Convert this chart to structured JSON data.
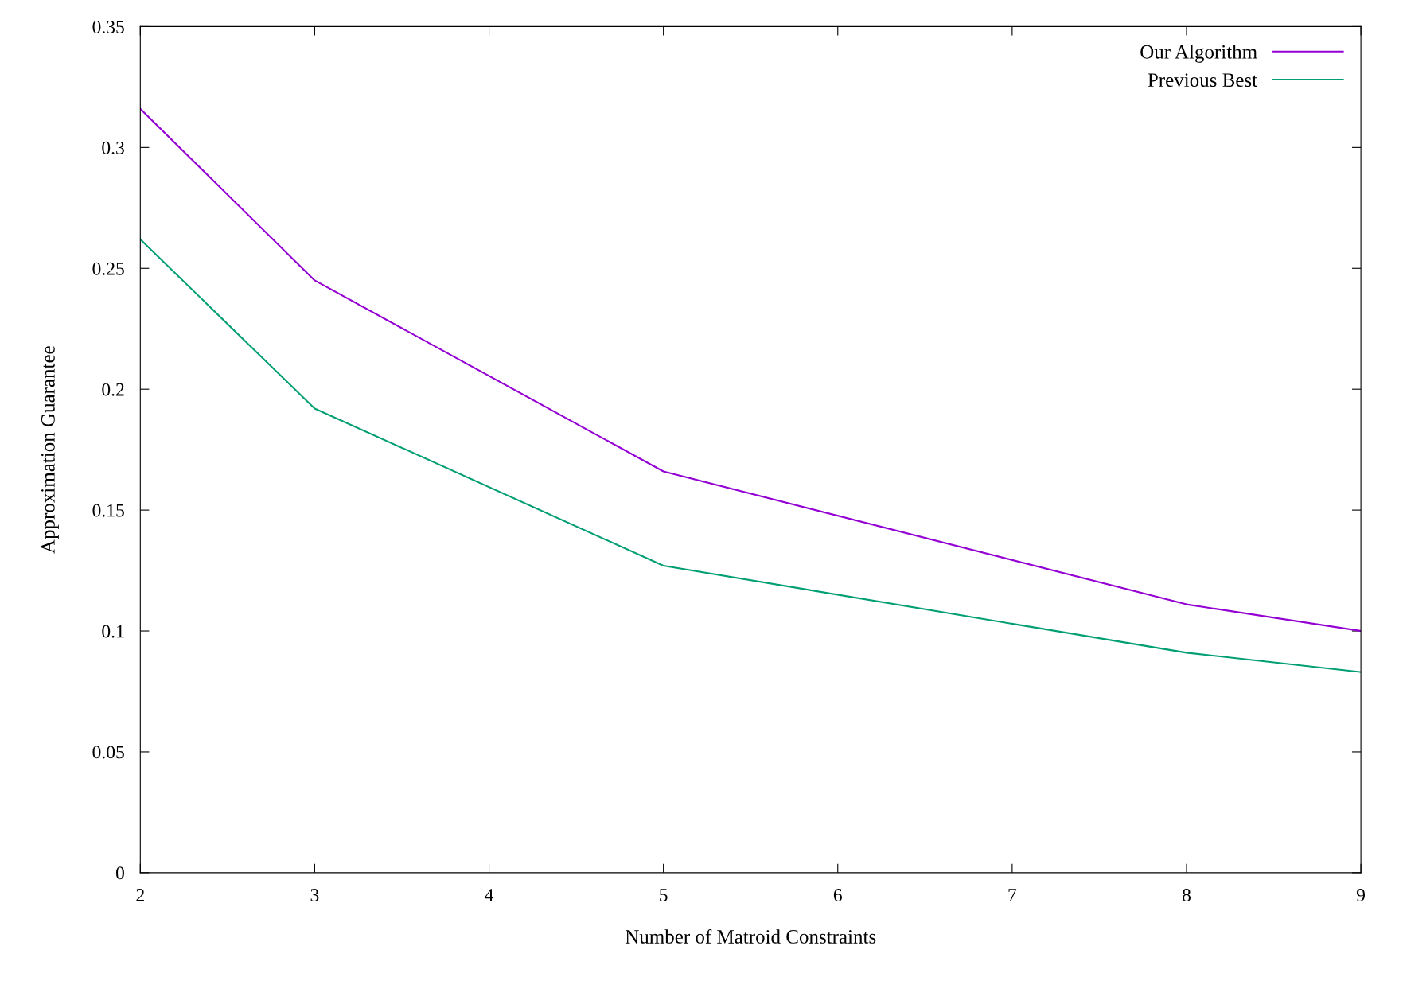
{
  "chart_data": {
    "type": "line",
    "xlabel": "Number of Matroid Constraints",
    "ylabel": "Approximation Guarantee",
    "x": [
      2,
      3,
      5,
      8,
      9
    ],
    "series": [
      {
        "name": "Our Algorithm",
        "color": "#9400d3",
        "values": [
          0.316,
          0.245,
          0.166,
          0.111,
          0.1
        ]
      },
      {
        "name": "Previous Best",
        "color": "#009e73",
        "values": [
          0.262,
          0.192,
          0.127,
          0.091,
          0.083
        ]
      }
    ],
    "xlim": [
      2,
      9
    ],
    "xticks": [
      2,
      3,
      4,
      5,
      6,
      7,
      8,
      9
    ],
    "ylim": [
      0,
      0.35
    ],
    "yticks": [
      0,
      0.05,
      0.1,
      0.15,
      0.2,
      0.25,
      0.3,
      0.35
    ],
    "legend": "top right",
    "grid": false,
    "marker": "none",
    "line_style": "solid"
  }
}
